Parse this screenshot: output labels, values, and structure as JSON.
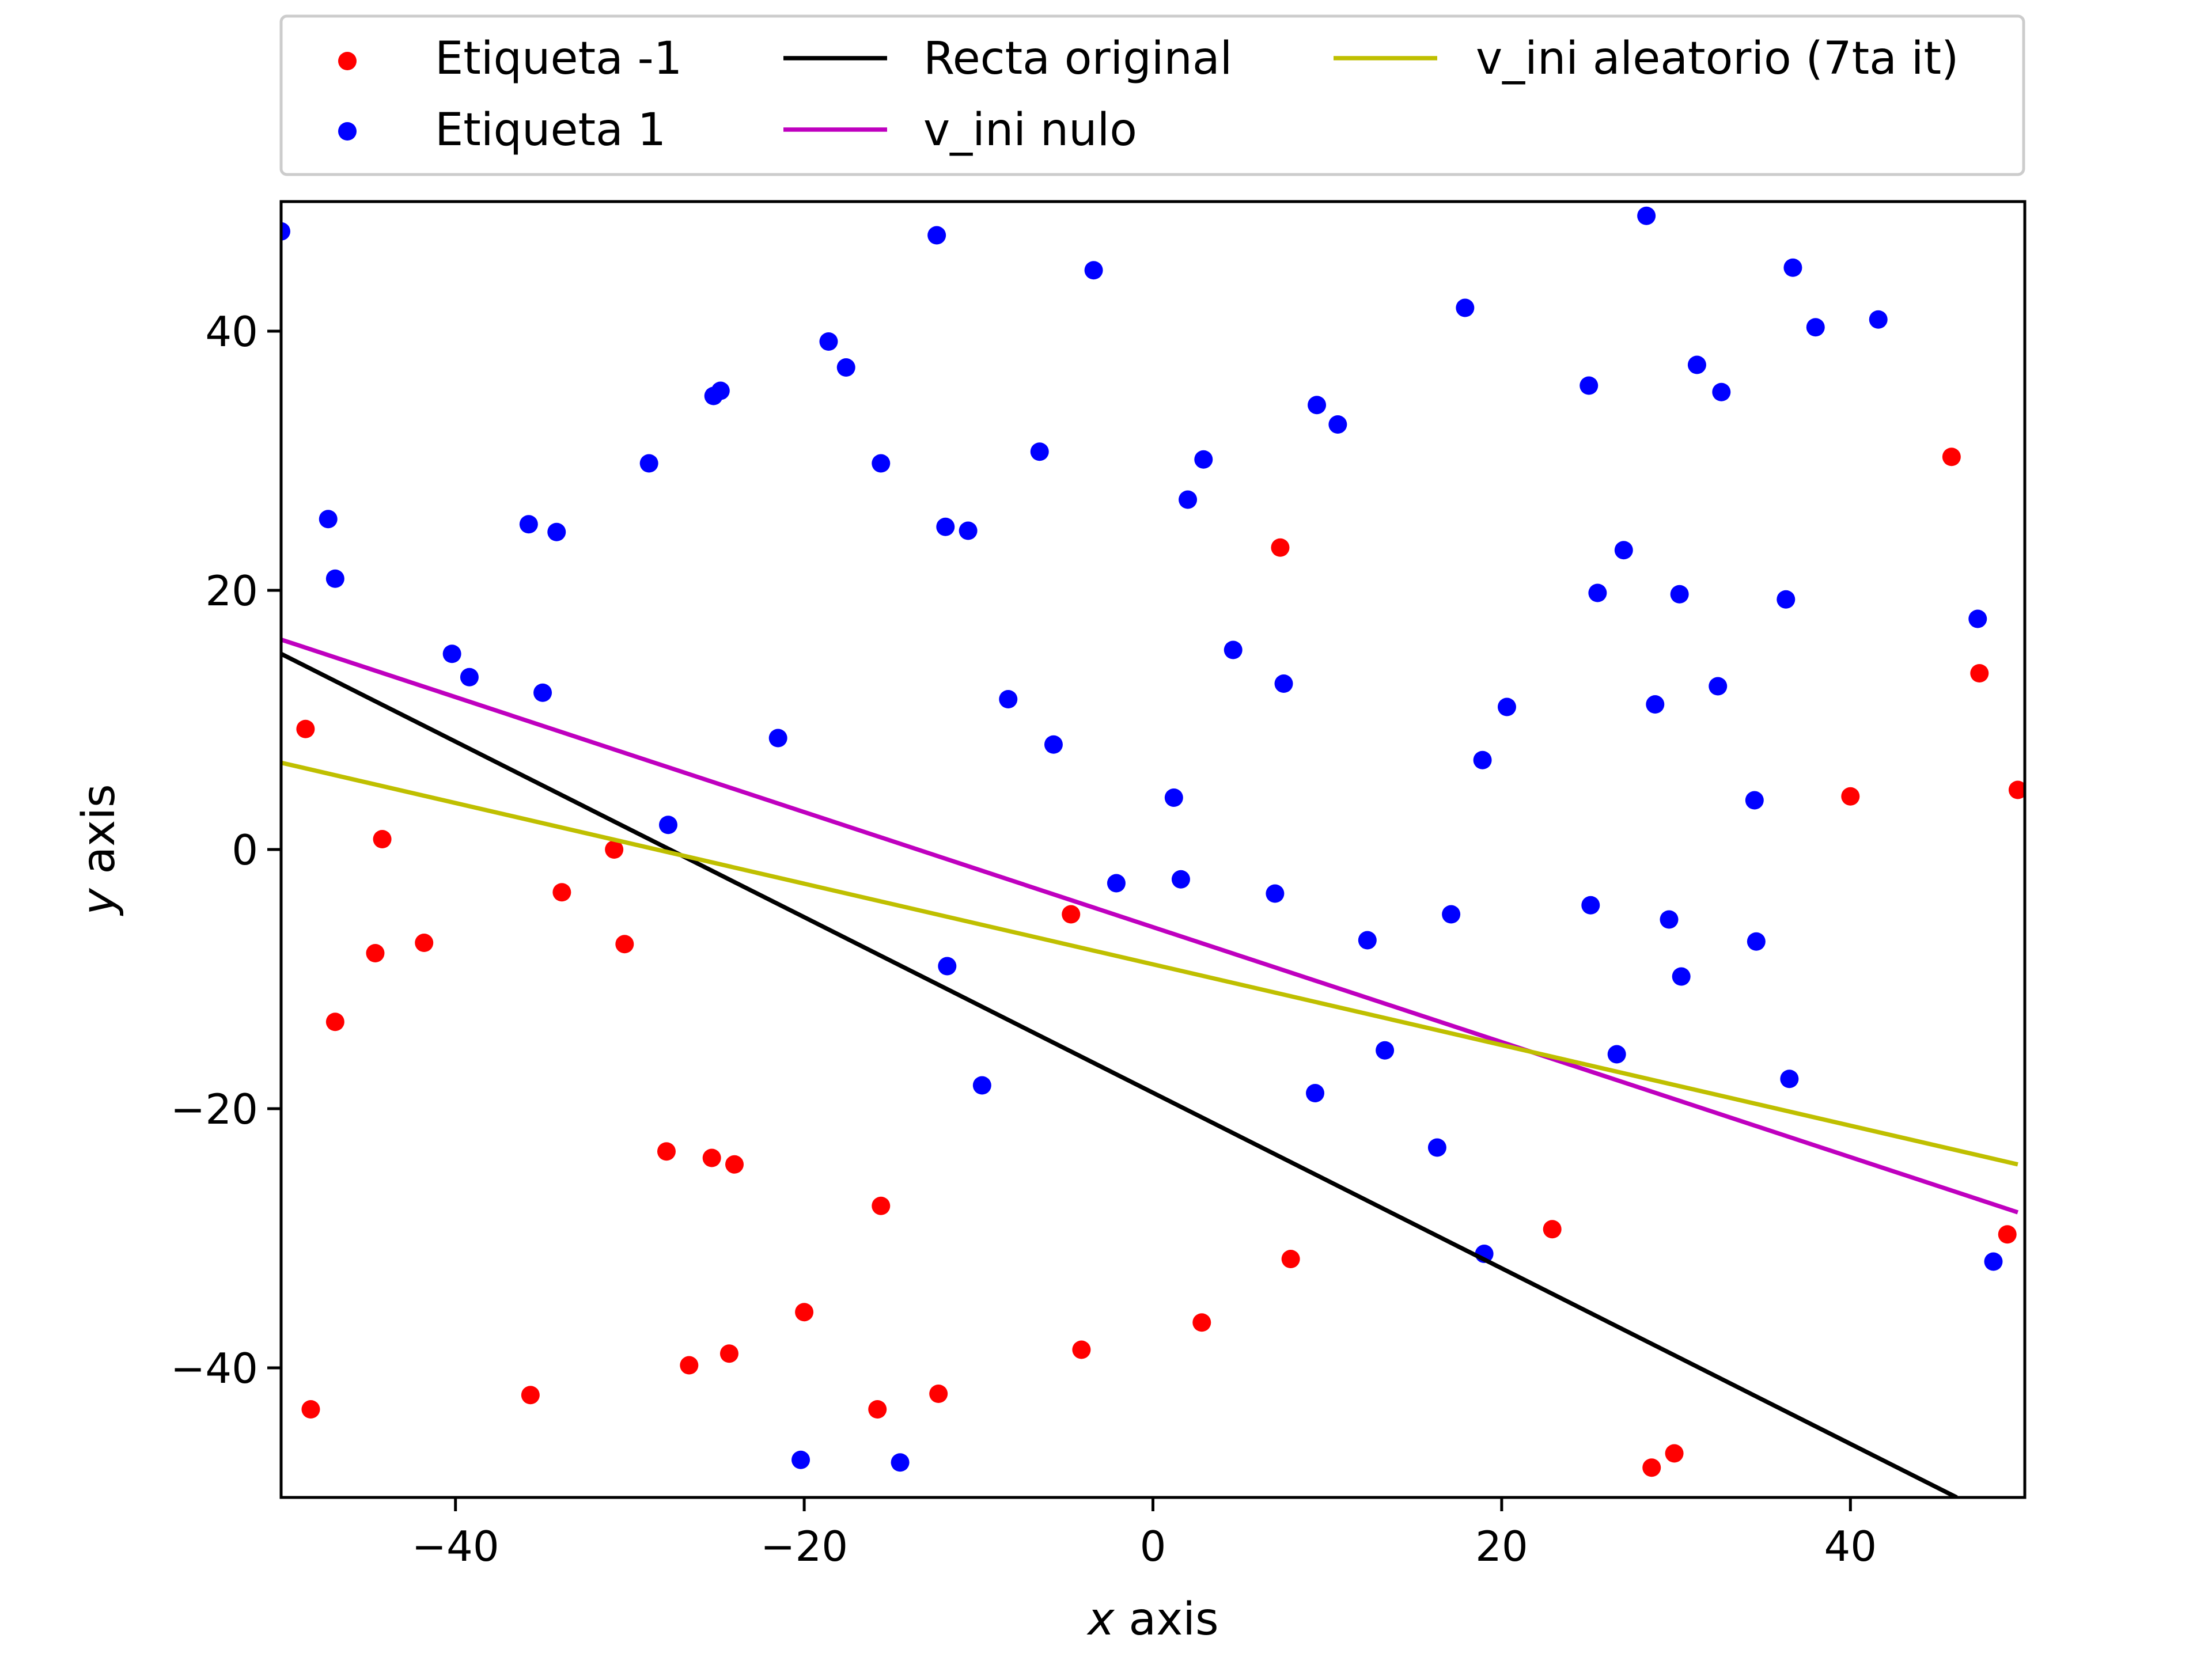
{
  "chart_data": {
    "type": "scatter",
    "title": "",
    "xlabel": "x axis",
    "ylabel": "y axis",
    "xlabel_var": "x",
    "xlabel_rest": " axis",
    "ylabel_var": "y",
    "ylabel_rest": " axis",
    "xlim": [
      -50,
      50
    ],
    "ylim": [
      -50,
      50
    ],
    "xticks": [
      {
        "value": -40,
        "label": "−40"
      },
      {
        "value": -20,
        "label": "−20"
      },
      {
        "value": 0,
        "label": "0"
      },
      {
        "value": 20,
        "label": "20"
      },
      {
        "value": 40,
        "label": "40"
      }
    ],
    "yticks": [
      {
        "value": -40,
        "label": "−40"
      },
      {
        "value": -20,
        "label": "−20"
      },
      {
        "value": 0,
        "label": "0"
      },
      {
        "value": 20,
        "label": "20"
      },
      {
        "value": 40,
        "label": "40"
      }
    ],
    "grid": false,
    "legend_position": "above plot, horizontal, 3 columns",
    "series": [
      {
        "name": "Etiqueta -1",
        "kind": "scatter",
        "color": "#ff0000",
        "points": [
          [
            -48.6,
            9.3
          ],
          [
            -48.3,
            -43.2
          ],
          [
            -46.9,
            -13.3
          ],
          [
            -44.6,
            -8.0
          ],
          [
            -44.2,
            0.8
          ],
          [
            -41.8,
            -7.2
          ],
          [
            -35.7,
            -42.1
          ],
          [
            -33.9,
            -3.3
          ],
          [
            -30.9,
            0.0
          ],
          [
            -30.3,
            -7.3
          ],
          [
            -27.9,
            -23.3
          ],
          [
            -26.6,
            -39.8
          ],
          [
            -25.3,
            -23.8
          ],
          [
            -24.3,
            -38.9
          ],
          [
            -24.0,
            -24.3
          ],
          [
            -20.0,
            -35.7
          ],
          [
            -15.8,
            -43.2
          ],
          [
            -15.6,
            -27.5
          ],
          [
            -12.3,
            -42.0
          ],
          [
            -4.7,
            -5.0
          ],
          [
            -4.1,
            -38.6
          ],
          [
            2.8,
            -36.5
          ],
          [
            7.3,
            23.3
          ],
          [
            7.9,
            -31.6
          ],
          [
            22.9,
            -29.3
          ],
          [
            28.6,
            -47.7
          ],
          [
            29.9,
            -46.6
          ],
          [
            40.0,
            4.1
          ],
          [
            45.8,
            30.3
          ],
          [
            47.4,
            13.6
          ],
          [
            49.0,
            -29.7
          ],
          [
            49.6,
            4.6
          ]
        ]
      },
      {
        "name": "Etiqueta 1",
        "kind": "scatter",
        "color": "#0000ff",
        "points": [
          [
            -50.0,
            47.7
          ],
          [
            -47.3,
            25.5
          ],
          [
            -46.9,
            20.9
          ],
          [
            -40.2,
            15.1
          ],
          [
            -39.2,
            13.3
          ],
          [
            -35.8,
            25.1
          ],
          [
            -35.0,
            12.1
          ],
          [
            -34.2,
            24.5
          ],
          [
            -28.9,
            29.8
          ],
          [
            -27.8,
            1.9
          ],
          [
            -25.2,
            35.0
          ],
          [
            -24.8,
            35.4
          ],
          [
            -21.5,
            8.6
          ],
          [
            -20.2,
            -47.1
          ],
          [
            -18.6,
            39.2
          ],
          [
            -17.6,
            37.2
          ],
          [
            -15.6,
            29.8
          ],
          [
            -14.5,
            -47.3
          ],
          [
            -12.4,
            47.4
          ],
          [
            -11.9,
            24.9
          ],
          [
            -11.8,
            -9.0
          ],
          [
            -10.6,
            24.6
          ],
          [
            -9.8,
            -18.2
          ],
          [
            -8.3,
            11.6
          ],
          [
            -6.5,
            30.7
          ],
          [
            -5.7,
            8.1
          ],
          [
            -3.4,
            44.7
          ],
          [
            -2.1,
            -2.6
          ],
          [
            1.2,
            4.0
          ],
          [
            1.6,
            -2.3
          ],
          [
            2.0,
            27.0
          ],
          [
            2.9,
            30.1
          ],
          [
            4.6,
            15.4
          ],
          [
            7.0,
            -3.4
          ],
          [
            7.5,
            12.8
          ],
          [
            9.3,
            -18.8
          ],
          [
            9.4,
            34.3
          ],
          [
            10.6,
            32.8
          ],
          [
            12.3,
            -7.0
          ],
          [
            13.3,
            -15.5
          ],
          [
            16.3,
            -23.0
          ],
          [
            17.1,
            -5.0
          ],
          [
            17.9,
            41.8
          ],
          [
            18.9,
            6.9
          ],
          [
            19.0,
            -31.2
          ],
          [
            20.3,
            11.0
          ],
          [
            25.0,
            35.8
          ],
          [
            25.1,
            -4.3
          ],
          [
            25.5,
            19.8
          ],
          [
            26.6,
            -15.8
          ],
          [
            27.0,
            23.1
          ],
          [
            28.3,
            48.9
          ],
          [
            28.8,
            11.2
          ],
          [
            29.6,
            -5.4
          ],
          [
            30.2,
            19.7
          ],
          [
            30.3,
            -9.8
          ],
          [
            31.2,
            37.4
          ],
          [
            32.4,
            12.6
          ],
          [
            32.6,
            35.3
          ],
          [
            34.5,
            3.8
          ],
          [
            34.6,
            -7.1
          ],
          [
            36.3,
            19.3
          ],
          [
            36.5,
            -17.7
          ],
          [
            36.7,
            44.9
          ],
          [
            38.0,
            40.3
          ],
          [
            41.6,
            40.9
          ],
          [
            47.3,
            17.8
          ],
          [
            48.2,
            -31.8
          ]
        ]
      },
      {
        "name": "Recta original",
        "kind": "line",
        "color": "#000000",
        "points": [
          [
            -50.0,
            15.1
          ],
          [
            46.1,
            -50.0
          ]
        ]
      },
      {
        "name": "v_ini nulo",
        "kind": "line",
        "color": "#bf00bf",
        "points": [
          [
            -50.0,
            16.2
          ],
          [
            49.6,
            -28.0
          ]
        ]
      },
      {
        "name": "v_ini aleatorio (7ta it)",
        "kind": "line",
        "color": "#bfbf00",
        "points": [
          [
            -50.0,
            6.7
          ],
          [
            49.6,
            -24.3
          ]
        ]
      }
    ]
  }
}
